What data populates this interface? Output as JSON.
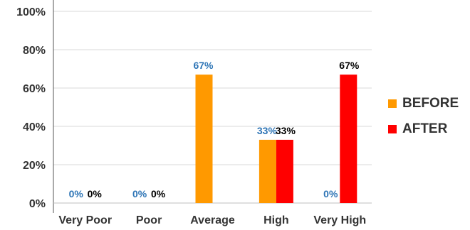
{
  "chart_data": {
    "type": "bar",
    "categories": [
      "Very Poor",
      "Poor",
      "Average",
      "High",
      "Very High"
    ],
    "series": [
      {
        "name": "BEFORE",
        "values": [
          0,
          0,
          67,
          33,
          0
        ],
        "labels": [
          "0%",
          "0%",
          "67%",
          "33%",
          "0%"
        ],
        "color": "#ff9900",
        "label_color": "#2e75b6"
      },
      {
        "name": "AFTER",
        "values": [
          0,
          0,
          0,
          33,
          67
        ],
        "labels": [
          "0%",
          "0%",
          "",
          "33%",
          "67%"
        ],
        "color": "#ff0000",
        "label_color": "#000000"
      }
    ],
    "y_ticks": [
      "0%",
      "20%",
      "40%",
      "60%",
      "80%",
      "100%"
    ],
    "ylim": [
      0,
      100
    ],
    "grid": true,
    "legend": "right"
  }
}
